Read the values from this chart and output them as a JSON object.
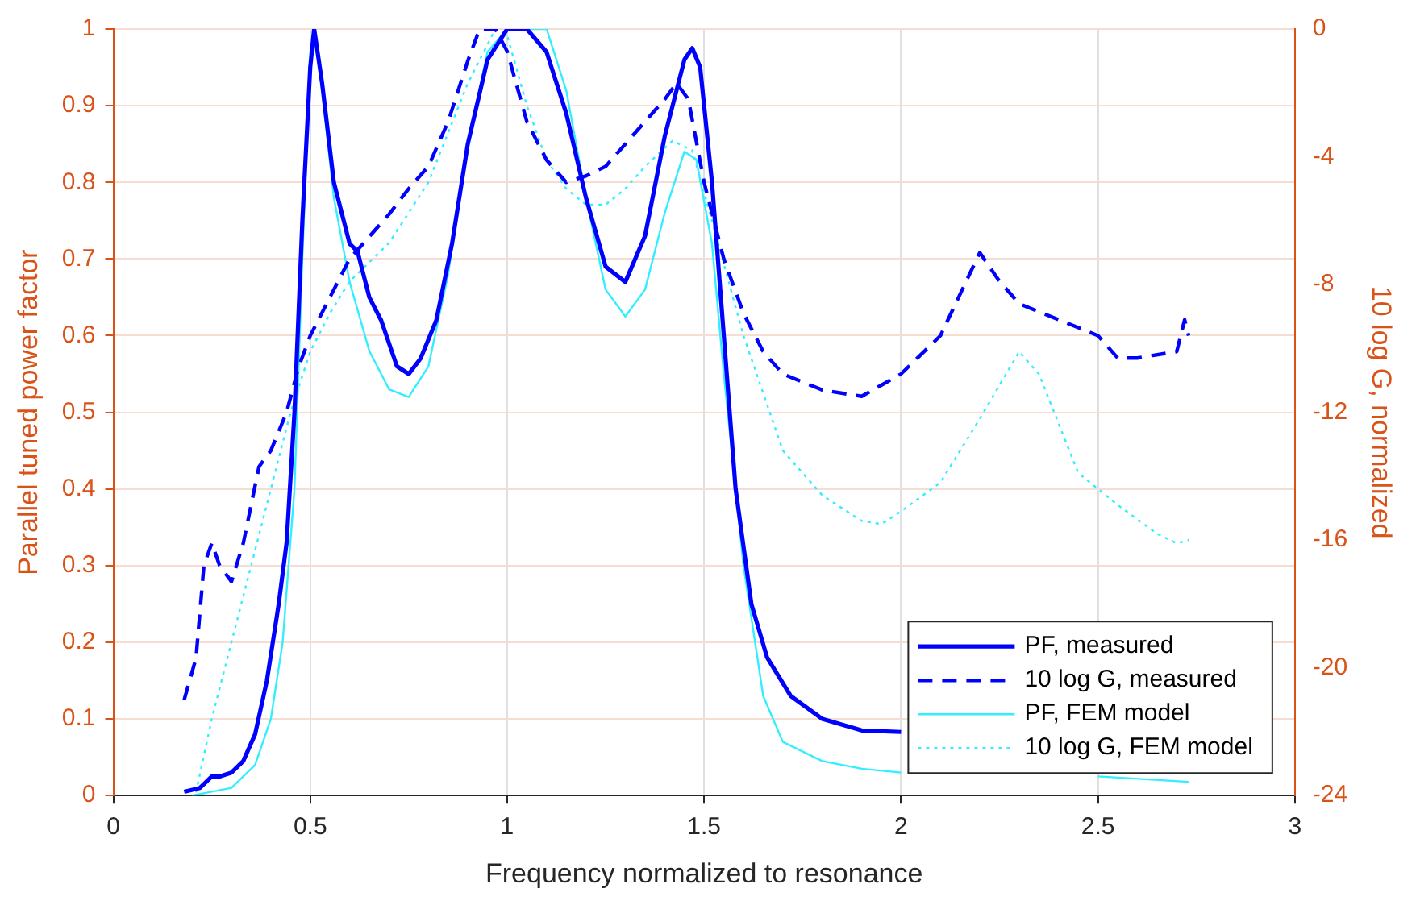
{
  "chart_data": {
    "type": "line",
    "xlabel": "Frequency normalized to resonance",
    "ylabel": "Parallel tuned power factor",
    "y2label": "10 log G, normalized",
    "xlim": [
      0,
      3
    ],
    "xticks": [
      0,
      0.5,
      1,
      1.5,
      2,
      2.5,
      3
    ],
    "ylim": [
      0,
      1
    ],
    "yticks": [
      0,
      0.1,
      0.2,
      0.3,
      0.4,
      0.5,
      0.6,
      0.7,
      0.8,
      0.9,
      1
    ],
    "y2lim": [
      -24,
      0
    ],
    "y2ticks": [
      -24,
      -20,
      -16,
      -12,
      -8,
      -4,
      0
    ],
    "grid": true,
    "legend": "bottom right",
    "marker": "none",
    "series": [
      {
        "name": "PF, measured",
        "color": "#0000ff",
        "line_style": "solid",
        "x": [
          0.18,
          0.22,
          0.25,
          0.27,
          0.3,
          0.33,
          0.36,
          0.39,
          0.42,
          0.44,
          0.46,
          0.48,
          0.5,
          0.51,
          0.53,
          0.56,
          0.6,
          0.62,
          0.65,
          0.68,
          0.72,
          0.75,
          0.78,
          0.82,
          0.86,
          0.9,
          0.95,
          1.0,
          1.05,
          1.1,
          1.15,
          1.2,
          1.25,
          1.3,
          1.35,
          1.4,
          1.45,
          1.47,
          1.49,
          1.52,
          1.55,
          1.58,
          1.62,
          1.66,
          1.72,
          1.8,
          1.9,
          2.0
        ],
        "values": [
          0.005,
          0.01,
          0.025,
          0.025,
          0.03,
          0.045,
          0.08,
          0.15,
          0.25,
          0.33,
          0.5,
          0.75,
          0.95,
          1.0,
          0.93,
          0.8,
          0.72,
          0.71,
          0.65,
          0.62,
          0.56,
          0.55,
          0.57,
          0.62,
          0.72,
          0.85,
          0.96,
          1.0,
          1.0,
          0.97,
          0.89,
          0.78,
          0.69,
          0.67,
          0.73,
          0.86,
          0.96,
          0.975,
          0.95,
          0.8,
          0.6,
          0.4,
          0.25,
          0.18,
          0.13,
          0.1,
          0.085,
          0.083
        ]
      },
      {
        "name": "10 log G, measured",
        "color": "#0000ff",
        "line_style": "dashed",
        "axis": "y2",
        "x": [
          0.18,
          0.21,
          0.23,
          0.25,
          0.27,
          0.3,
          0.33,
          0.37,
          0.4,
          0.44,
          0.47,
          0.5,
          0.55,
          0.6,
          0.65,
          0.7,
          0.75,
          0.8,
          0.85,
          0.9,
          0.93,
          0.97,
          1.0,
          1.05,
          1.1,
          1.15,
          1.2,
          1.25,
          1.3,
          1.35,
          1.4,
          1.43,
          1.46,
          1.5,
          1.55,
          1.6,
          1.65,
          1.7,
          1.8,
          1.9,
          2.0,
          2.1,
          2.2,
          2.25,
          2.3,
          2.4,
          2.5,
          2.55,
          2.6,
          2.7,
          2.72,
          2.73
        ],
        "values": [
          -21,
          -19.7,
          -16.8,
          -16.1,
          -16.8,
          -17.3,
          -16.1,
          -13.7,
          -13.2,
          -12,
          -10.6,
          -9.6,
          -8.4,
          -7.2,
          -6.5,
          -5.8,
          -5,
          -4.3,
          -2.9,
          -1,
          0,
          0,
          -0.7,
          -2.9,
          -4.1,
          -4.8,
          -4.6,
          -4.3,
          -3.6,
          -2.9,
          -2.2,
          -1.7,
          -2.2,
          -4.8,
          -7.2,
          -8.9,
          -10.1,
          -10.8,
          -11.3,
          -11.5,
          -10.8,
          -9.6,
          -7,
          -7.9,
          -8.6,
          -9.1,
          -9.6,
          -10.3,
          -10.3,
          -10.1,
          -9.1,
          -9.6
        ]
      },
      {
        "name": "PF, FEM model",
        "color": "#33eeff",
        "line_style": "solid",
        "x": [
          0.2,
          0.3,
          0.36,
          0.4,
          0.43,
          0.46,
          0.48,
          0.5,
          0.51,
          0.53,
          0.56,
          0.6,
          0.65,
          0.7,
          0.75,
          0.8,
          0.85,
          0.9,
          0.95,
          1.0,
          1.05,
          1.1,
          1.15,
          1.2,
          1.25,
          1.3,
          1.35,
          1.4,
          1.45,
          1.48,
          1.52,
          1.55,
          1.6,
          1.65,
          1.7,
          1.8,
          1.9,
          2.0,
          2.25,
          2.5,
          2.73
        ],
        "values": [
          0.0,
          0.01,
          0.04,
          0.1,
          0.2,
          0.4,
          0.7,
          0.97,
          1.0,
          0.92,
          0.78,
          0.67,
          0.58,
          0.53,
          0.52,
          0.56,
          0.68,
          0.85,
          0.97,
          1.0,
          1.0,
          1.0,
          0.92,
          0.78,
          0.66,
          0.625,
          0.66,
          0.76,
          0.84,
          0.83,
          0.72,
          0.55,
          0.3,
          0.13,
          0.07,
          0.045,
          0.035,
          0.03,
          null,
          0.025,
          0.018
        ]
      },
      {
        "name": "10 log G, FEM model",
        "color": "#33eeff",
        "line_style": "dotted",
        "axis": "y2",
        "x": [
          0.21,
          0.25,
          0.3,
          0.35,
          0.4,
          0.45,
          0.5,
          0.55,
          0.6,
          0.7,
          0.8,
          0.9,
          0.97,
          1.0,
          1.05,
          1.1,
          1.15,
          1.2,
          1.25,
          1.3,
          1.35,
          1.42,
          1.47,
          1.52,
          1.6,
          1.7,
          1.8,
          1.9,
          1.95,
          2.0,
          2.1,
          2.2,
          2.3,
          2.35,
          2.45,
          2.55,
          2.65,
          2.7,
          2.73
        ],
        "values": [
          -23.9,
          -21.6,
          -19.2,
          -16.8,
          -14.4,
          -12,
          -10.1,
          -8.9,
          -7.9,
          -6.7,
          -4.8,
          -1.7,
          0,
          -0.2,
          -2.4,
          -4.1,
          -5,
          -5.5,
          -5.5,
          -5,
          -4.3,
          -3.5,
          -3.8,
          -6,
          -9.6,
          -13.2,
          -14.6,
          -15.4,
          -15.5,
          -15.1,
          -14.2,
          -12.2,
          -10.1,
          -10.8,
          -13.9,
          -14.9,
          -15.8,
          -16.1,
          -16
        ]
      }
    ]
  }
}
